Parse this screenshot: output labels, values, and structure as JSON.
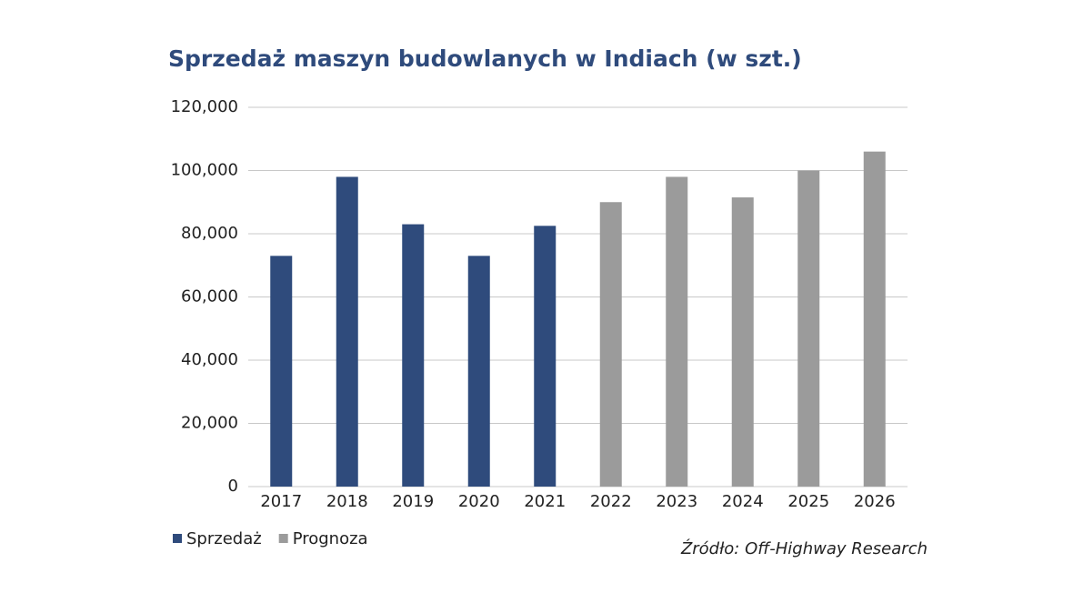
{
  "chart_data": {
    "type": "bar",
    "title": "Sprzedaż maszyn budowlanych w Indiach (w szt.)",
    "categories": [
      "2017",
      "2018",
      "2019",
      "2020",
      "2021",
      "2022",
      "2023",
      "2024",
      "2025",
      "2026"
    ],
    "series": [
      {
        "name": "Sprzedaż",
        "color": "#2f4b7c",
        "values": [
          73000,
          98000,
          83000,
          73000,
          82500,
          null,
          null,
          null,
          null,
          null
        ]
      },
      {
        "name": "Prognoza",
        "color": "#9b9b9b",
        "values": [
          null,
          null,
          null,
          null,
          null,
          90000,
          98000,
          91500,
          100000,
          106000
        ]
      }
    ],
    "ylim": [
      0,
      120000
    ],
    "yticks": [
      0,
      {
        "value": 20000,
        "label": "20,000"
      },
      {
        "value": 40000,
        "label": "40,000"
      },
      {
        "value": 60000,
        "label": "60,000"
      },
      {
        "value": 80000,
        "label": "80,000"
      },
      {
        "value": 100000,
        "label": "100,000"
      },
      {
        "value": 120000,
        "label": "120,000"
      }
    ],
    "grid": true,
    "legend": "bottom-left",
    "source": "Źródło: Off-Highway Research"
  }
}
